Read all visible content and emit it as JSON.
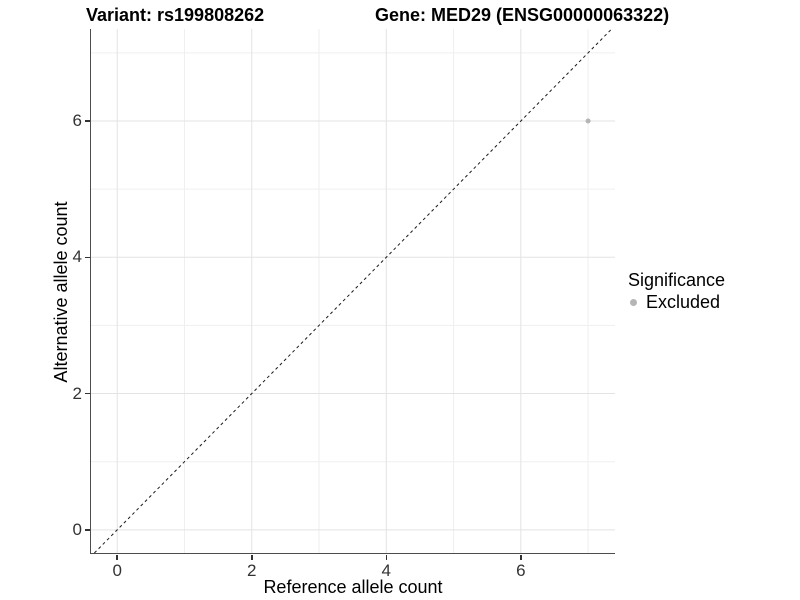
{
  "titles": {
    "variant": "Variant: rs199808262",
    "gene": "Gene: MED29 (ENSG00000063322)"
  },
  "chart_data": {
    "type": "scatter",
    "title": "Variant: rs199808262   Gene: MED29 (ENSG00000063322)",
    "xlabel": "Reference allele count",
    "ylabel": "Alternative allele count",
    "xticks": [
      0,
      2,
      4,
      6
    ],
    "yticks": [
      0,
      2,
      4,
      6
    ],
    "x_minor": [
      1,
      3,
      5,
      7
    ],
    "y_minor": [
      1,
      3,
      5,
      7
    ],
    "xlim": [
      -0.39,
      7.4
    ],
    "ylim": [
      -0.34,
      7.35
    ],
    "grid": true,
    "legend_position": "right",
    "series": [
      {
        "name": "Excluded",
        "color": "#b5b5b5",
        "points": [
          {
            "x": 7,
            "y": 6
          }
        ]
      }
    ],
    "reference_line": {
      "type": "identity",
      "style": "dashed",
      "color": "#1a1a1a"
    },
    "style": {
      "gridline_major_color": "#e3e3e3",
      "gridline_minor_color": "#efefef",
      "axis_line_color": "#4d4d4d",
      "tick_label_color": "#333333",
      "point_radius": 2.5
    }
  },
  "legend": {
    "title": "Significance",
    "items": [
      {
        "label": "Excluded",
        "color": "#b5b5b5"
      }
    ]
  }
}
